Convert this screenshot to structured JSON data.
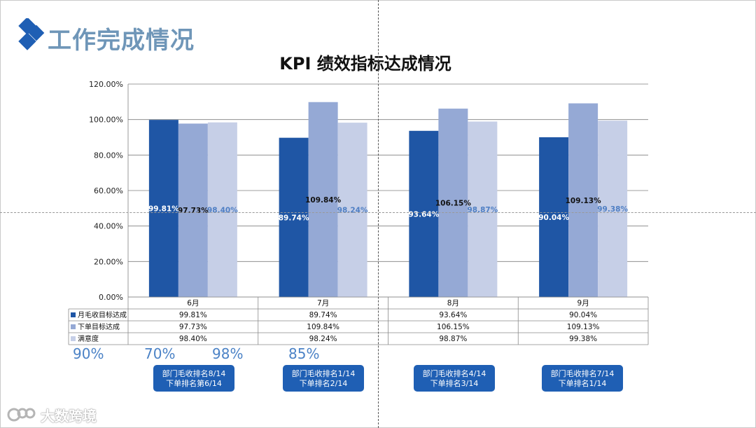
{
  "header": {
    "section_title": "工作完成情况",
    "chart_title": "KPI 绩效指标达成情况"
  },
  "chart_data": {
    "type": "bar",
    "title": "KPI 绩效指标达成情况",
    "categories": [
      "6月",
      "7月",
      "8月",
      "9月"
    ],
    "ylim": [
      0,
      120
    ],
    "yticks": [
      0,
      20,
      40,
      60,
      80,
      100,
      120
    ],
    "ytick_labels": [
      "0.00%",
      "20.00%",
      "40.00%",
      "60.00%",
      "80.00%",
      "100.00%",
      "120.00%"
    ],
    "grid": true,
    "legend": "data-table-below",
    "series": [
      {
        "name": "月毛收目标达成",
        "color": "#1f56a5",
        "values": [
          99.81,
          89.74,
          93.64,
          90.04
        ],
        "labels": [
          "99.81%",
          "89.74%",
          "93.64%",
          "90.04%"
        ],
        "label_color": "#ffffff"
      },
      {
        "name": "下单目标达成",
        "color": "#95a9d5",
        "values": [
          97.73,
          109.84,
          106.15,
          109.13
        ],
        "labels": [
          "97.73%",
          "109.84%",
          "106.15%",
          "109.13%"
        ],
        "label_color": "#111111"
      },
      {
        "name": "满意度",
        "color": "#c6cfe7",
        "values": [
          98.4,
          98.24,
          98.87,
          99.38
        ],
        "labels": [
          "98.40%",
          "98.24%",
          "98.87%",
          "99.38%"
        ],
        "label_color": "#4f7fc4"
      }
    ]
  },
  "notes": {
    "percent_values": [
      "90%",
      "70%",
      "98%",
      "85%"
    ],
    "rank_buttons": [
      {
        "line1": "部门毛收排名8/14",
        "line2": "下单排名第6/14"
      },
      {
        "line1": "部门毛收排名1/14",
        "line2": "下单排名2/14"
      },
      {
        "line1": "部门毛收排名4/14",
        "line2": "下单排名3/14"
      },
      {
        "line1": "部门毛收排名7/14",
        "line2": "下单排名1/14"
      }
    ]
  },
  "watermark": {
    "text": "大数跨境"
  },
  "colors": {
    "accent": "#1f5fb4",
    "title": "#6f96b8",
    "series1": "#1f56a5",
    "series2": "#95a9d5",
    "series3": "#c6cfe7"
  }
}
